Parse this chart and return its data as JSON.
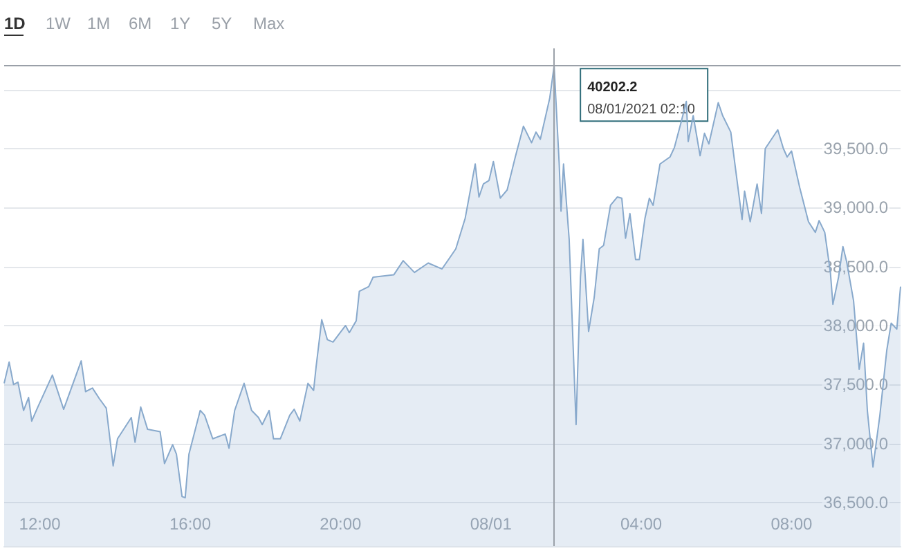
{
  "chart_data": {
    "type": "area",
    "x": [
      "2021-07-31T11:03",
      "2021-07-31T11:11",
      "2021-07-31T11:18",
      "2021-07-31T11:25",
      "2021-07-31T11:34",
      "2021-07-31T11:42",
      "2021-07-31T11:47",
      "2021-07-31T11:56",
      "2021-07-31T12:20",
      "2021-07-31T12:38",
      "2021-07-31T12:53",
      "2021-07-31T13:06",
      "2021-07-31T13:13",
      "2021-07-31T13:24",
      "2021-07-31T13:35",
      "2021-07-31T13:46",
      "2021-07-31T13:57",
      "2021-07-31T14:04",
      "2021-07-31T14:26",
      "2021-07-31T14:32",
      "2021-07-31T14:41",
      "2021-07-31T14:52",
      "2021-07-31T15:12",
      "2021-07-31T15:19",
      "2021-07-31T15:32",
      "2021-07-31T15:38",
      "2021-07-31T15:47",
      "2021-07-31T15:52",
      "2021-07-31T15:58",
      "2021-07-31T16:16",
      "2021-07-31T16:23",
      "2021-07-31T16:36",
      "2021-07-31T16:56",
      "2021-07-31T17:02",
      "2021-07-31T17:11",
      "2021-07-31T17:26",
      "2021-07-31T17:38",
      "2021-07-31T17:49",
      "2021-07-31T17:55",
      "2021-07-31T18:06",
      "2021-07-31T18:13",
      "2021-07-31T18:24",
      "2021-07-31T18:39",
      "2021-07-31T18:46",
      "2021-07-31T18:55",
      "2021-07-31T19:08",
      "2021-07-31T19:17",
      "2021-07-31T19:21",
      "2021-07-31T19:30",
      "2021-07-31T19:39",
      "2021-07-31T19:48",
      "2021-07-31T20:08",
      "2021-07-31T20:14",
      "2021-07-31T20:25",
      "2021-07-31T20:30",
      "2021-07-31T20:45",
      "2021-07-31T20:52",
      "2021-07-31T21:25",
      "2021-07-31T21:40",
      "2021-07-31T21:58",
      "2021-07-31T22:20",
      "2021-07-31T22:42",
      "2021-07-31T22:55",
      "2021-07-31T23:04",
      "2021-07-31T23:19",
      "2021-07-31T23:35",
      "2021-07-31T23:41",
      "2021-07-31T23:48",
      "2021-07-31T23:57",
      "2021-08-01T00:04",
      "2021-08-01T00:15",
      "2021-08-01T00:26",
      "2021-08-01T00:39",
      "2021-08-01T00:52",
      "2021-08-01T01:05",
      "2021-08-01T01:12",
      "2021-08-01T01:19",
      "2021-08-01T01:34",
      "2021-08-01T01:41",
      "2021-08-01T01:49",
      "2021-08-01T01:52",
      "2021-08-01T01:56",
      "2021-08-01T02:05",
      "2021-08-01T02:16",
      "2021-08-01T02:23",
      "2021-08-01T02:27",
      "2021-08-01T02:36",
      "2021-08-01T02:45",
      "2021-08-01T02:53",
      "2021-08-01T03:00",
      "2021-08-01T03:11",
      "2021-08-01T03:22",
      "2021-08-01T03:29",
      "2021-08-01T03:35",
      "2021-08-01T03:42",
      "2021-08-01T03:51",
      "2021-08-01T03:57",
      "2021-08-01T04:06",
      "2021-08-01T04:13",
      "2021-08-01T04:19",
      "2021-08-01T04:30",
      "2021-08-01T04:46",
      "2021-08-01T04:53",
      "2021-08-01T05:04",
      "2021-08-01T05:12",
      "2021-08-01T05:15",
      "2021-08-01T05:23",
      "2021-08-01T05:34",
      "2021-08-01T05:41",
      "2021-08-01T05:48",
      "2021-08-01T06:03",
      "2021-08-01T06:10",
      "2021-08-01T06:23",
      "2021-08-01T06:41",
      "2021-08-01T06:45",
      "2021-08-01T06:54",
      "2021-08-01T07:05",
      "2021-08-01T07:12",
      "2021-08-01T07:18",
      "2021-08-01T07:38",
      "2021-08-01T07:47",
      "2021-08-01T07:53",
      "2021-08-01T08:00",
      "2021-08-01T08:13",
      "2021-08-01T08:27",
      "2021-08-01T08:38",
      "2021-08-01T08:44",
      "2021-08-01T08:53",
      "2021-08-01T09:02",
      "2021-08-01T09:06",
      "2021-08-01T09:15",
      "2021-08-01T09:22",
      "2021-08-01T09:28",
      "2021-08-01T09:39",
      "2021-08-01T09:48",
      "2021-08-01T09:55",
      "2021-08-01T10:01",
      "2021-08-01T10:10",
      "2021-08-01T10:21",
      "2021-08-01T10:32",
      "2021-08-01T10:39",
      "2021-08-01T10:48",
      "2021-08-01T10:54"
    ],
    "series": [
      {
        "color": "#88a9cc",
        "values": [
          37510,
          37690,
          37500,
          37520,
          37280,
          37390,
          37190,
          37300,
          37580,
          37290,
          37510,
          37700,
          37440,
          37470,
          37380,
          37300,
          36810,
          37040,
          37220,
          37010,
          37310,
          37120,
          37100,
          36830,
          36990,
          36910,
          36550,
          36540,
          36910,
          37280,
          37240,
          37040,
          37080,
          36960,
          37280,
          37510,
          37280,
          37220,
          37160,
          37280,
          37040,
          37040,
          37240,
          37290,
          37190,
          37510,
          37450,
          37650,
          38050,
          37880,
          37860,
          38000,
          37940,
          38040,
          38290,
          38330,
          38410,
          38430,
          38550,
          38450,
          38530,
          38480,
          38580,
          38650,
          38910,
          39370,
          39090,
          39200,
          39230,
          39390,
          39080,
          39150,
          39430,
          39690,
          39550,
          39640,
          39580,
          39930,
          40202.2,
          39380,
          38970,
          39370,
          38730,
          37160,
          38410,
          38730,
          37950,
          38240,
          38650,
          38680,
          39020,
          39090,
          39080,
          38740,
          38950,
          38560,
          38560,
          38910,
          39080,
          39020,
          39370,
          39430,
          39510,
          39730,
          39900,
          39560,
          39780,
          39440,
          39630,
          39540,
          39890,
          39780,
          39640,
          38900,
          39140,
          38880,
          39200,
          38950,
          39500,
          39660,
          39500,
          39430,
          39480,
          39170,
          38880,
          38790,
          38890,
          38790,
          38450,
          38180,
          38410,
          38670,
          38540,
          38210,
          37630,
          37850,
          37280,
          36800,
          37240,
          37790,
          38020,
          37970,
          38330
        ]
      }
    ],
    "xlim": [
      "2021-07-31T11:03",
      "2021-08-01T10:54"
    ],
    "xticks": [
      {
        "value": "2021-07-31T12:00",
        "label": "12:00"
      },
      {
        "value": "2021-07-31T16:00",
        "label": "16:00"
      },
      {
        "value": "2021-07-31T20:00",
        "label": "20:00"
      },
      {
        "value": "2021-08-01T00:00",
        "label": "08/01"
      },
      {
        "value": "2021-08-01T04:00",
        "label": "04:00"
      },
      {
        "value": "2021-08-01T08:00",
        "label": "08:00"
      }
    ],
    "ylim": [
      36130,
      40350
    ],
    "yticks": [
      {
        "value": 36500,
        "label": "36,500.0"
      },
      {
        "value": 37000,
        "label": "37,000.0"
      },
      {
        "value": 37500,
        "label": "37,500.0"
      },
      {
        "value": 38000,
        "label": "38,000.0"
      },
      {
        "value": 38500,
        "label": "38,500.0"
      },
      {
        "value": 39000,
        "label": "39,000.0"
      },
      {
        "value": 39500,
        "label": "39,500.0"
      },
      {
        "value": 40000,
        "label": null
      }
    ],
    "grid": "y",
    "ref_lines": [
      {
        "axis": "y",
        "value": 40202.2,
        "color": "#9aa0a8"
      },
      {
        "axis": "x",
        "value": "2021-08-01T01:41",
        "color": "#9aa0a8"
      }
    ],
    "annotations": [
      "1D",
      "1W",
      "1M",
      "6M",
      "1Y",
      "5Y",
      "Max",
      {
        "text": "40202.2\n08/01/2021 02:10",
        "x": "2021-08-01T01:41",
        "y": 40202.2
      }
    ]
  }
}
